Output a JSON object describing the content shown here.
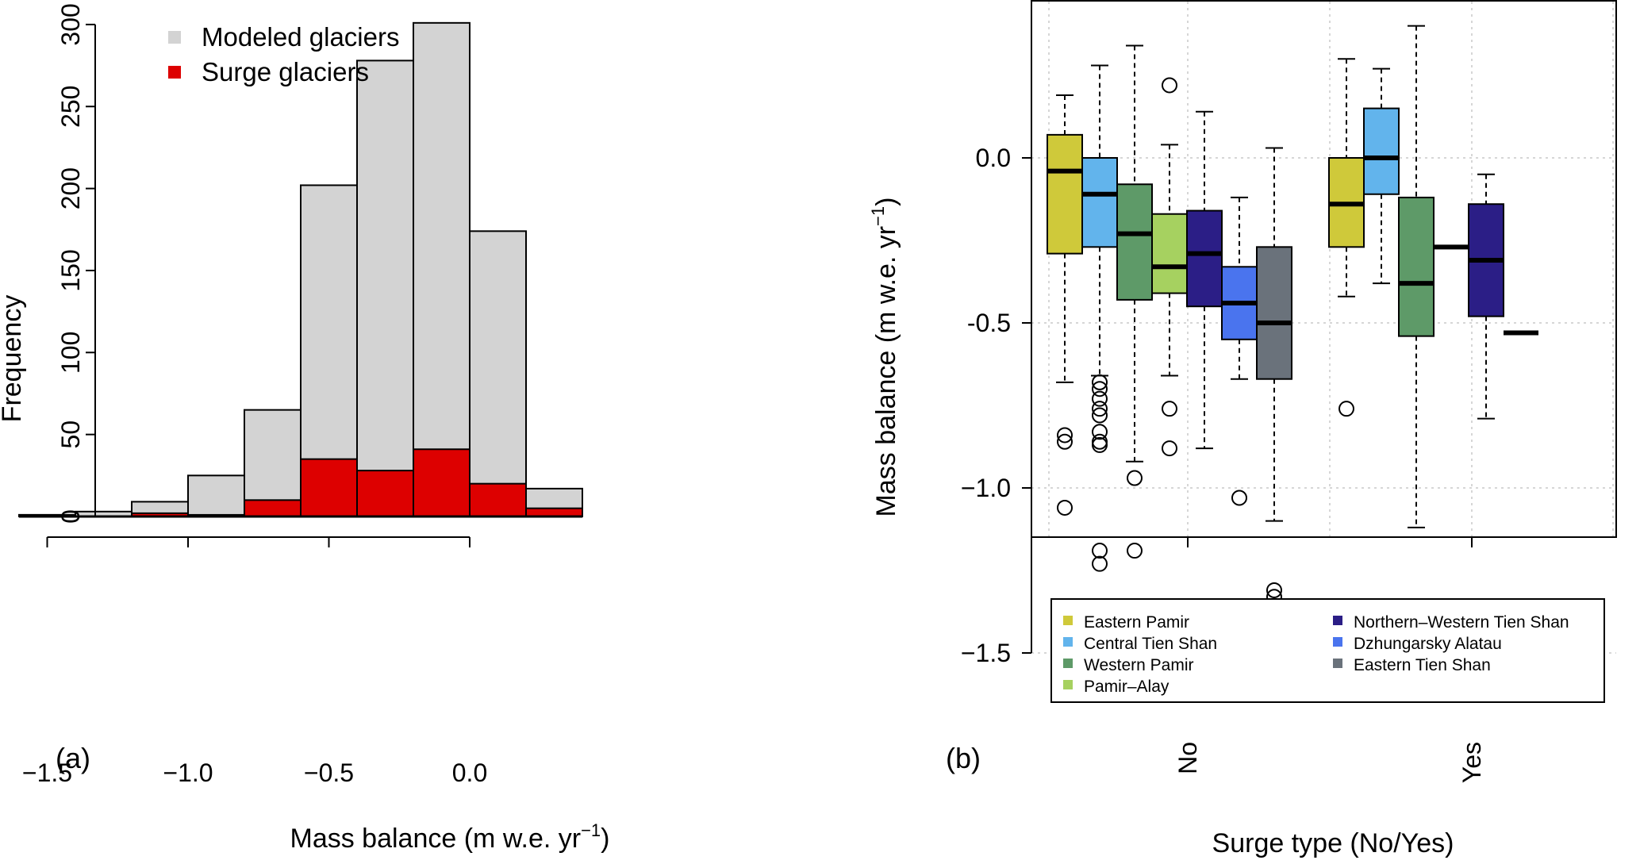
{
  "chart_data": [
    {
      "panel_label": "(a)",
      "type": "bar",
      "xlabel": "Mass balance (m w.e. yr",
      "xlabel_sup": "−1",
      "xlabel_end": ")",
      "ylabel": "Frequency",
      "xlim": [
        -1.6,
        0.45
      ],
      "ylim": [
        0,
        300
      ],
      "xticks": [
        -1.5,
        -1.0,
        -0.5,
        0.0
      ],
      "xtick_labels": [
        "−1.5",
        "−1.0",
        "−0.5",
        "0.0"
      ],
      "yticks": [
        0,
        50,
        100,
        150,
        200,
        250,
        300
      ],
      "ytick_labels": [
        "0",
        "50",
        "100",
        "150",
        "200",
        "250",
        "300"
      ],
      "bin_edges": [
        -1.6,
        -1.4,
        -1.2,
        -1.0,
        -0.8,
        -0.6,
        -0.4,
        -0.2,
        0.0,
        0.2,
        0.4
      ],
      "series": [
        {
          "name": "Modeled glaciers",
          "color": "#d3d3d3",
          "values": [
            1,
            3,
            9,
            25,
            65,
            202,
            278,
            301,
            174,
            17
          ]
        },
        {
          "name": "Surge glaciers",
          "color": "#dd0000",
          "values": [
            1,
            0,
            2,
            1,
            10,
            35,
            28,
            41,
            20,
            5
          ]
        }
      ],
      "legend_position": "top-left"
    },
    {
      "panel_label": "(b)",
      "type": "boxplot",
      "xlabel": "Surge type (No/Yes)",
      "ylabel": "Mass balance (m w.e. yr",
      "ylabel_sup": "−1",
      "ylabel_end": ")",
      "ylim": [
        -1.65,
        0.47
      ],
      "yticks": [
        0.0,
        -0.5,
        -1.0,
        -1.5
      ],
      "ytick_labels": [
        "0.0",
        "-0.5",
        "−1.0",
        "−1.5"
      ],
      "x_categories": [
        "No",
        "Yes"
      ],
      "grid": true,
      "legend_position": "bottom",
      "groups": [
        {
          "name": "Eastern Pamir",
          "color": "#cfc93a"
        },
        {
          "name": "Central Tien Shan",
          "color": "#62b4ec"
        },
        {
          "name": "Western Pamir",
          "color": "#5e9a68"
        },
        {
          "name": "Pamir–Alay",
          "color": "#a6d160"
        },
        {
          "name": "Northern–Western Tien Shan",
          "color": "#2b1e86"
        },
        {
          "name": "Dzhungarsky Alatau",
          "color": "#4a74ee"
        },
        {
          "name": "Eastern Tien Shan",
          "color": "#6a727b"
        }
      ],
      "boxes": [
        {
          "category": "No",
          "group": "Eastern Pamir",
          "whisker_low": -0.68,
          "q1": -0.29,
          "median": -0.04,
          "q3": 0.07,
          "whisker_high": 0.19,
          "outliers": [
            -0.84,
            -0.86,
            -1.06
          ]
        },
        {
          "category": "No",
          "group": "Central Tien Shan",
          "whisker_low": -0.66,
          "q1": -0.27,
          "median": -0.11,
          "q3": 0.0,
          "whisker_high": 0.28,
          "outliers": [
            -0.68,
            -0.7,
            -0.73,
            -0.76,
            -0.78,
            -0.83,
            -0.86,
            -0.87,
            -1.19,
            -1.23
          ]
        },
        {
          "category": "No",
          "group": "Western Pamir",
          "whisker_low": -0.92,
          "q1": -0.43,
          "median": -0.23,
          "q3": -0.08,
          "whisker_high": 0.34,
          "outliers": [
            -0.97,
            -1.19
          ]
        },
        {
          "category": "No",
          "group": "Pamir–Alay",
          "whisker_low": -0.66,
          "q1": -0.41,
          "median": -0.33,
          "q3": -0.17,
          "whisker_high": 0.04,
          "outliers": [
            0.22,
            -0.76,
            -0.88
          ]
        },
        {
          "category": "No",
          "group": "Northern–Western Tien Shan",
          "whisker_low": -0.88,
          "q1": -0.45,
          "median": -0.29,
          "q3": -0.16,
          "whisker_high": 0.14,
          "outliers": []
        },
        {
          "category": "No",
          "group": "Dzhungarsky Alatau",
          "whisker_low": -0.67,
          "q1": -0.55,
          "median": -0.44,
          "q3": -0.33,
          "whisker_high": -0.12,
          "outliers": [
            -1.03
          ]
        },
        {
          "category": "No",
          "group": "Eastern Tien Shan",
          "whisker_low": -1.1,
          "q1": -0.67,
          "median": -0.5,
          "q3": -0.27,
          "whisker_high": 0.03,
          "outliers": [
            -1.31,
            -1.33
          ]
        },
        {
          "category": "Yes",
          "group": "Eastern Pamir",
          "whisker_low": -0.42,
          "q1": -0.27,
          "median": -0.14,
          "q3": 0.0,
          "whisker_high": 0.3,
          "outliers": [
            -0.76
          ]
        },
        {
          "category": "Yes",
          "group": "Central Tien Shan",
          "whisker_low": -0.38,
          "q1": -0.11,
          "median": 0.0,
          "q3": 0.15,
          "whisker_high": 0.27,
          "outliers": []
        },
        {
          "category": "Yes",
          "group": "Western Pamir",
          "whisker_low": -1.12,
          "q1": -0.54,
          "median": -0.38,
          "q3": -0.12,
          "whisker_high": 0.4,
          "outliers": []
        },
        {
          "category": "Yes",
          "group": "Pamir–Alay",
          "whisker_low": -0.27,
          "q1": -0.27,
          "median": -0.27,
          "q3": -0.27,
          "whisker_high": -0.27,
          "outliers": []
        },
        {
          "category": "Yes",
          "group": "Northern–Western Tien Shan",
          "whisker_low": -0.79,
          "q1": -0.48,
          "median": -0.31,
          "q3": -0.14,
          "whisker_high": -0.05,
          "outliers": []
        },
        {
          "category": "Yes",
          "group": "Dzhungarsky Alatau",
          "whisker_low": -0.53,
          "q1": -0.53,
          "median": -0.53,
          "q3": -0.53,
          "whisker_high": -0.53,
          "outliers": []
        }
      ]
    }
  ]
}
